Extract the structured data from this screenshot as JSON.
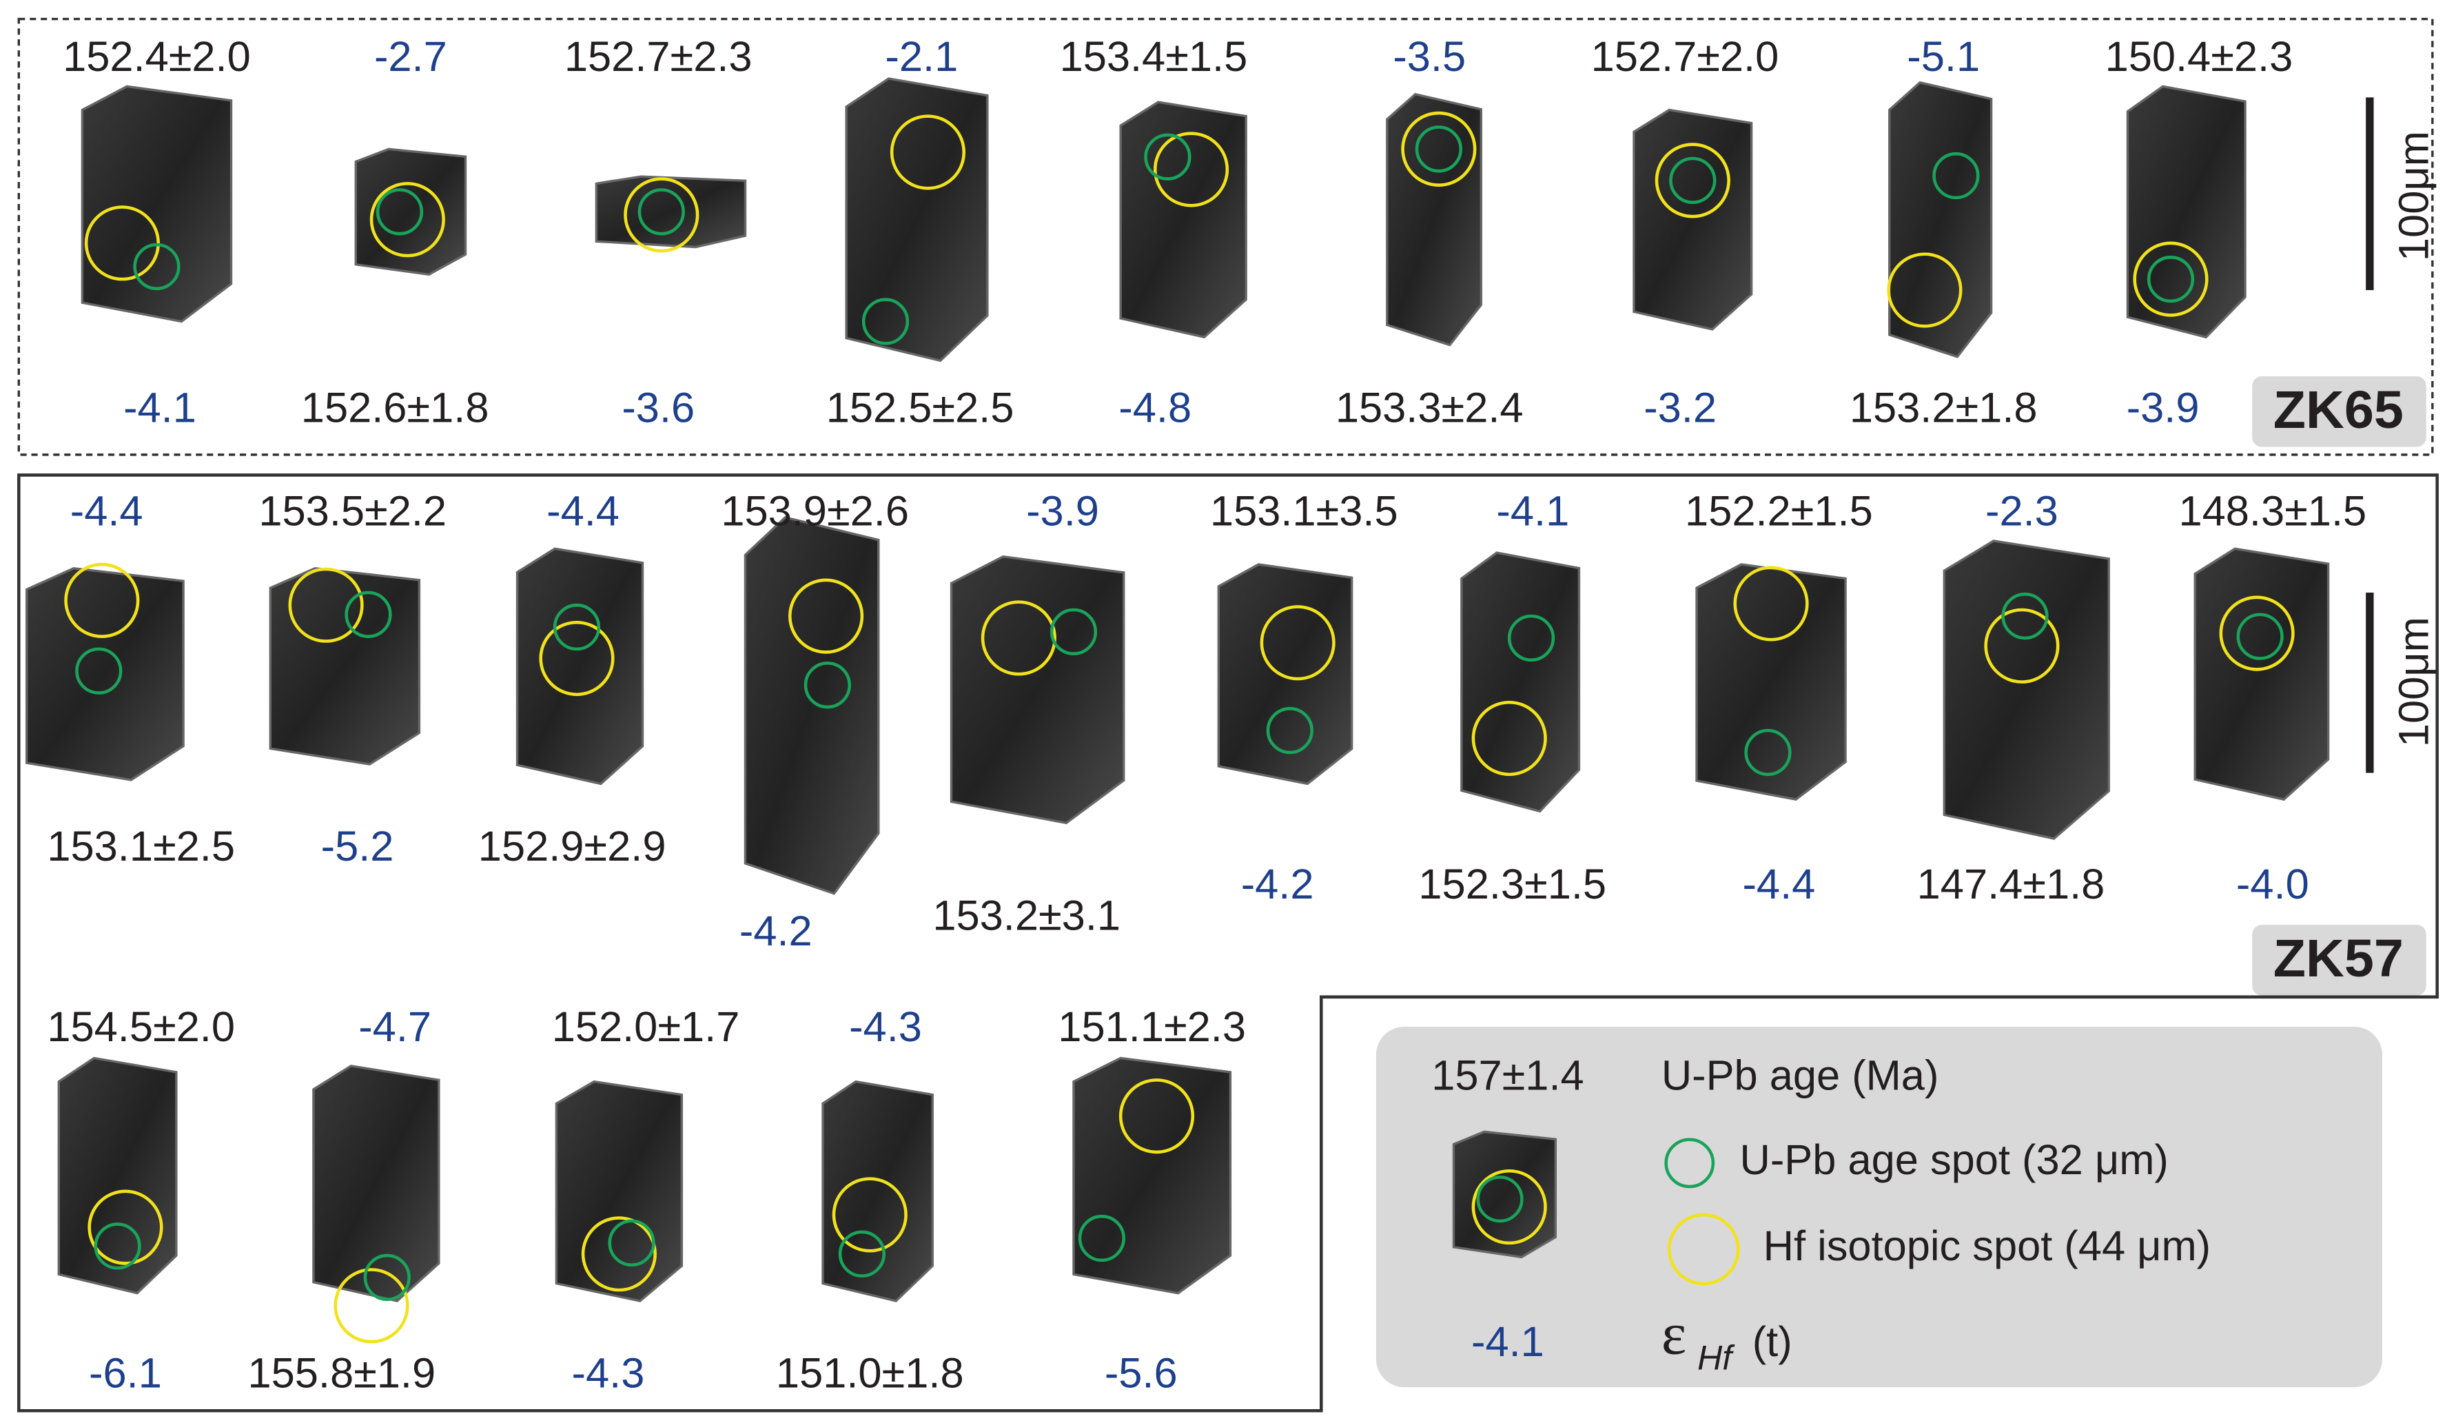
{
  "panels": [
    {
      "label": "ZK65",
      "grains": [
        {
          "age": "152.4±2.0",
          "ehf": "-4.1"
        },
        {
          "age": "152.6±1.8",
          "ehf": "-2.7"
        },
        {
          "age": "152.7±2.3",
          "ehf": "-3.6"
        },
        {
          "age": "152.5±2.5",
          "ehf": "-2.1"
        },
        {
          "age": "153.4±1.5",
          "ehf": "-4.8"
        },
        {
          "age": "153.3±2.4",
          "ehf": "-3.5"
        },
        {
          "age": "152.7±2.0",
          "ehf": "-3.2"
        },
        {
          "age": "153.2±1.8",
          "ehf": "-5.1"
        },
        {
          "age": "150.4±2.3",
          "ehf": "-3.9"
        }
      ]
    },
    {
      "label": "ZK57",
      "grains": [
        {
          "age": "153.1±2.5",
          "ehf": "-4.4"
        },
        {
          "age": "153.5±2.2",
          "ehf": "-5.2"
        },
        {
          "age": "152.9±2.9",
          "ehf": "-4.4"
        },
        {
          "age": "153.9±2.6",
          "ehf": "-4.2"
        },
        {
          "age": "153.2±3.1",
          "ehf": "-3.9"
        },
        {
          "age": "153.1±3.5",
          "ehf": "-4.2"
        },
        {
          "age": "152.3±1.5",
          "ehf": "-4.1"
        },
        {
          "age": "152.2±1.5",
          "ehf": "-4.4"
        },
        {
          "age": "147.4±1.8",
          "ehf": "-2.3"
        },
        {
          "age": "148.3±1.5",
          "ehf": "-4.0"
        },
        {
          "age": "154.5±2.0",
          "ehf": "-6.1"
        },
        {
          "age": "155.8±1.9",
          "ehf": "-4.7"
        },
        {
          "age": "152.0±1.7",
          "ehf": "-4.3"
        },
        {
          "age": "151.0±1.8",
          "ehf": "-4.3"
        },
        {
          "age": "151.1±2.3",
          "ehf": "-5.6"
        }
      ]
    }
  ],
  "scale_bar": "100μm",
  "legend": {
    "age_example": "157±1.4",
    "ehf_example": "-4.1",
    "age_title": "U-Pb age (Ma)",
    "age_spot": "U-Pb age spot (32 μm)",
    "hf_spot": "Hf isotopic spot (44 μm)",
    "ehf_symbol": "ε",
    "ehf_subscript": "Hf",
    "ehf_suffix": "(t)"
  }
}
